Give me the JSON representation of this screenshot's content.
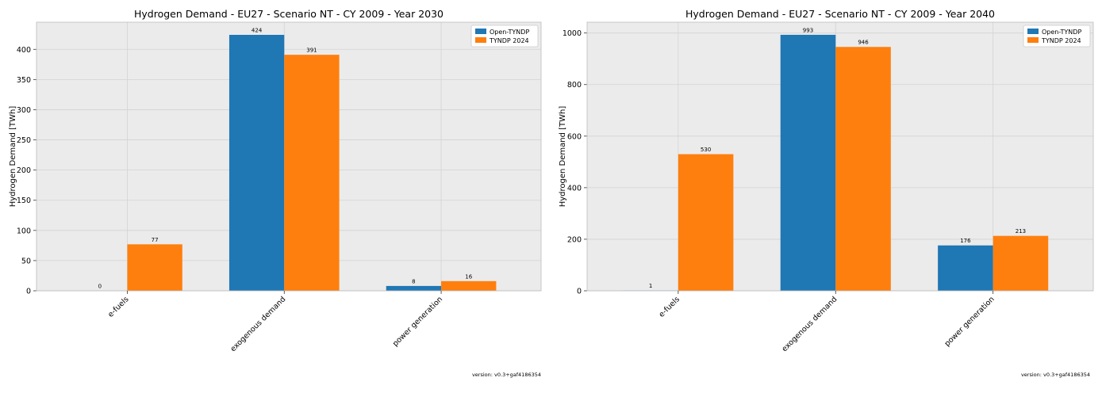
{
  "chart_data": [
    {
      "type": "bar",
      "title": "Hydrogen Demand - EU27 - Scenario NT - CY 2009 - Year 2030",
      "xlabel": "",
      "ylabel": "Hydrogen Demand [TWh]",
      "ylim": [
        0,
        445
      ],
      "yticks": [
        0,
        50,
        100,
        150,
        200,
        250,
        300,
        350,
        400
      ],
      "grid": true,
      "legend_position": "top-right",
      "categories": [
        "e-fuels",
        "exogenous demand",
        "power generation"
      ],
      "series": [
        {
          "name": "Open-TYNDP",
          "color": "#1f77b4",
          "values": [
            0,
            424,
            8
          ],
          "labels": [
            "0",
            "424",
            "8"
          ]
        },
        {
          "name": "TYNDP 2024",
          "color": "#ff7f0e",
          "values": [
            77,
            391,
            16
          ],
          "labels": [
            "77",
            "391",
            "16"
          ]
        }
      ],
      "footer": "version: v0.3+gaf4186354"
    },
    {
      "type": "bar",
      "title": "Hydrogen Demand - EU27 - Scenario NT - CY 2009 - Year 2040",
      "xlabel": "",
      "ylabel": "Hydrogen Demand [TWh]",
      "ylim": [
        0,
        1042
      ],
      "yticks": [
        0,
        200,
        400,
        600,
        800,
        1000
      ],
      "grid": true,
      "legend_position": "top-right",
      "categories": [
        "e-fuels",
        "exogenous demand",
        "power generation"
      ],
      "series": [
        {
          "name": "Open-TYNDP",
          "color": "#1f77b4",
          "values": [
            1,
            993,
            176
          ],
          "labels": [
            "1",
            "993",
            "176"
          ]
        },
        {
          "name": "TYNDP 2024",
          "color": "#ff7f0e",
          "values": [
            530,
            946,
            213
          ],
          "labels": [
            "530",
            "946",
            "213"
          ]
        }
      ],
      "footer": "version: v0.3+gaf4186354"
    }
  ]
}
